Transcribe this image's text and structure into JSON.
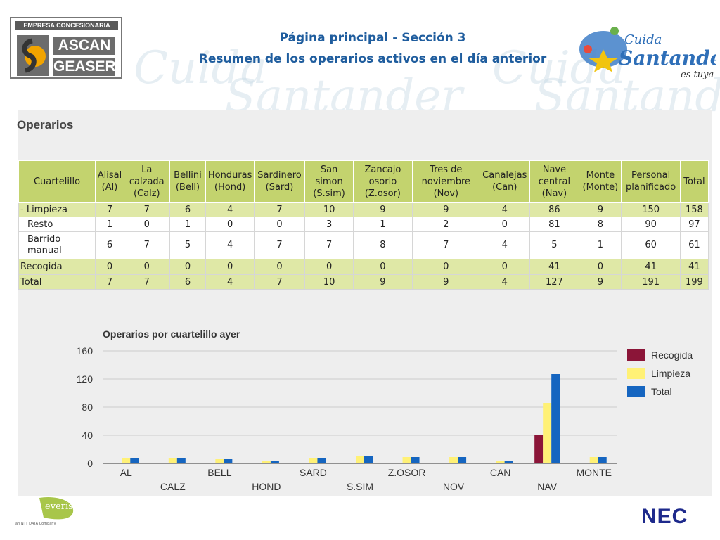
{
  "header": {
    "title_line1": "Página principal  - Sección 3",
    "title_line2": "Resumen de los operarios activos en el día anterior",
    "logo_left_label": "EMPRESA CONCESIONARIA",
    "logo_left_word1": "ASCAN",
    "logo_left_word2": "GEASER",
    "logo_right_word1": "Cuida",
    "logo_right_word2": "Santander",
    "logo_right_word3": "es tuya"
  },
  "panel": {
    "title": "Operarios"
  },
  "table": {
    "headers": [
      "Cuartelillo",
      "Alisal (Al)",
      "La calzada (Calz)",
      "Bellini (Bell)",
      "Honduras (Hond)",
      "Sardinero (Sard)",
      "San simon (S.sim)",
      "Zancajo osorio (Z.osor)",
      "Tres de noviembre (Nov)",
      "Canalejas (Can)",
      "Nave central (Nav)",
      "Monte (Monte)",
      "Personal planificado",
      "Total"
    ],
    "rows": [
      {
        "label": "- Limpieza",
        "values": [
          "7",
          "7",
          "6",
          "4",
          "7",
          "10",
          "9",
          "9",
          "4",
          "86",
          "9",
          "150",
          "158"
        ]
      },
      {
        "label": "Resto",
        "values": [
          "1",
          "0",
          "1",
          "0",
          "0",
          "3",
          "1",
          "2",
          "0",
          "81",
          "8",
          "90",
          "97"
        ]
      },
      {
        "label": "Barrido manual",
        "values": [
          "6",
          "7",
          "5",
          "4",
          "7",
          "7",
          "8",
          "7",
          "4",
          "5",
          "1",
          "60",
          "61"
        ]
      },
      {
        "label": "Recogida",
        "values": [
          "0",
          "0",
          "0",
          "0",
          "0",
          "0",
          "0",
          "0",
          "0",
          "41",
          "0",
          "41",
          "41"
        ]
      },
      {
        "label": "Total",
        "values": [
          "7",
          "7",
          "6",
          "4",
          "7",
          "10",
          "9",
          "9",
          "4",
          "127",
          "9",
          "191",
          "199"
        ]
      }
    ]
  },
  "chart_data": {
    "type": "bar",
    "title": "Operarios por cuartelillo ayer",
    "categories": [
      "AL",
      "CALZ",
      "BELL",
      "HOND",
      "SARD",
      "S.SIM",
      "Z.OSOR",
      "NOV",
      "CAN",
      "NAV",
      "MONTE"
    ],
    "series": [
      {
        "name": "Recogida",
        "color": "#8b1538",
        "values": [
          0,
          0,
          0,
          0,
          0,
          0,
          0,
          0,
          0,
          41,
          0
        ]
      },
      {
        "name": "Limpieza",
        "color": "#fff176",
        "values": [
          7,
          7,
          6,
          4,
          7,
          10,
          9,
          9,
          4,
          86,
          9
        ]
      },
      {
        "name": "Total",
        "color": "#1565c0",
        "values": [
          7,
          7,
          6,
          4,
          7,
          10,
          9,
          9,
          4,
          127,
          9
        ]
      }
    ],
    "yticks": [
      "0",
      "40",
      "80",
      "120",
      "160"
    ],
    "ylim": [
      0,
      160
    ],
    "legend": "right"
  },
  "footer": {
    "left_brand": "everis",
    "left_sub": "an NTT DATA Company",
    "right_brand": "NEC"
  }
}
